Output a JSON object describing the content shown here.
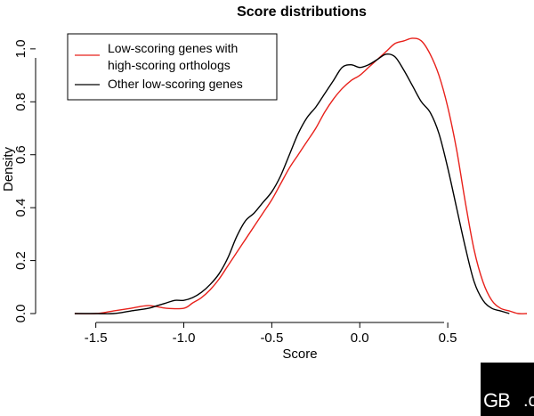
{
  "chart_data": {
    "type": "line",
    "title": "Score distributions",
    "xlabel": "Score",
    "ylabel": "Density",
    "xlim": [
      -1.65,
      0.98
    ],
    "ylim": [
      0,
      1.05
    ],
    "xticks": [
      -1.5,
      -1.0,
      -0.5,
      0.0,
      0.5
    ],
    "xtick_labels": [
      "-1.5",
      "-1.0",
      "-0.5",
      "0.0",
      "0.5"
    ],
    "yticks": [
      0,
      0.2,
      0.4,
      0.6,
      0.8,
      1.0
    ],
    "ytick_labels": [
      "0.0",
      "0.2",
      "0.4",
      "0.6",
      "0.8",
      "1.0"
    ],
    "grid": false,
    "legend_position": "top-left",
    "series": [
      {
        "name": "Low-scoring genes with high-scoring orthologs",
        "color": "#e8211b",
        "x": [
          -1.62,
          -1.5,
          -1.4,
          -1.3,
          -1.2,
          -1.1,
          -1.0,
          -0.95,
          -0.9,
          -0.85,
          -0.8,
          -0.75,
          -0.7,
          -0.65,
          -0.6,
          -0.55,
          -0.5,
          -0.45,
          -0.4,
          -0.35,
          -0.3,
          -0.25,
          -0.2,
          -0.15,
          -0.1,
          -0.05,
          0.0,
          0.05,
          0.1,
          0.15,
          0.2,
          0.25,
          0.3,
          0.35,
          0.4,
          0.45,
          0.5,
          0.55,
          0.6,
          0.65,
          0.7,
          0.75,
          0.8,
          0.85,
          0.9,
          0.95
        ],
        "y": [
          0.0,
          0.0,
          0.01,
          0.02,
          0.03,
          0.02,
          0.02,
          0.04,
          0.06,
          0.09,
          0.13,
          0.18,
          0.23,
          0.28,
          0.33,
          0.38,
          0.43,
          0.49,
          0.55,
          0.6,
          0.65,
          0.7,
          0.76,
          0.81,
          0.85,
          0.88,
          0.9,
          0.93,
          0.96,
          0.99,
          1.02,
          1.03,
          1.04,
          1.03,
          0.98,
          0.9,
          0.78,
          0.62,
          0.42,
          0.24,
          0.12,
          0.05,
          0.02,
          0.01,
          0.0,
          0.0
        ]
      },
      {
        "name": "Other low-scoring genes",
        "color": "#000000",
        "x": [
          -1.62,
          -1.5,
          -1.4,
          -1.3,
          -1.2,
          -1.15,
          -1.1,
          -1.05,
          -1.0,
          -0.95,
          -0.9,
          -0.85,
          -0.8,
          -0.75,
          -0.7,
          -0.65,
          -0.6,
          -0.55,
          -0.5,
          -0.45,
          -0.4,
          -0.35,
          -0.3,
          -0.25,
          -0.2,
          -0.15,
          -0.1,
          -0.05,
          0.0,
          0.05,
          0.1,
          0.15,
          0.2,
          0.25,
          0.3,
          0.35,
          0.4,
          0.45,
          0.5,
          0.55,
          0.6,
          0.65,
          0.7,
          0.75,
          0.8,
          0.85
        ],
        "y": [
          0.0,
          0.0,
          0.0,
          0.01,
          0.02,
          0.03,
          0.04,
          0.05,
          0.05,
          0.06,
          0.08,
          0.11,
          0.15,
          0.21,
          0.29,
          0.35,
          0.38,
          0.42,
          0.46,
          0.52,
          0.6,
          0.68,
          0.74,
          0.78,
          0.83,
          0.88,
          0.93,
          0.94,
          0.93,
          0.94,
          0.96,
          0.98,
          0.97,
          0.92,
          0.86,
          0.8,
          0.76,
          0.68,
          0.55,
          0.4,
          0.25,
          0.12,
          0.05,
          0.02,
          0.01,
          0.0
        ]
      }
    ]
  },
  "logo": {
    "text_main": "GB",
    "text_tail": ".c"
  }
}
